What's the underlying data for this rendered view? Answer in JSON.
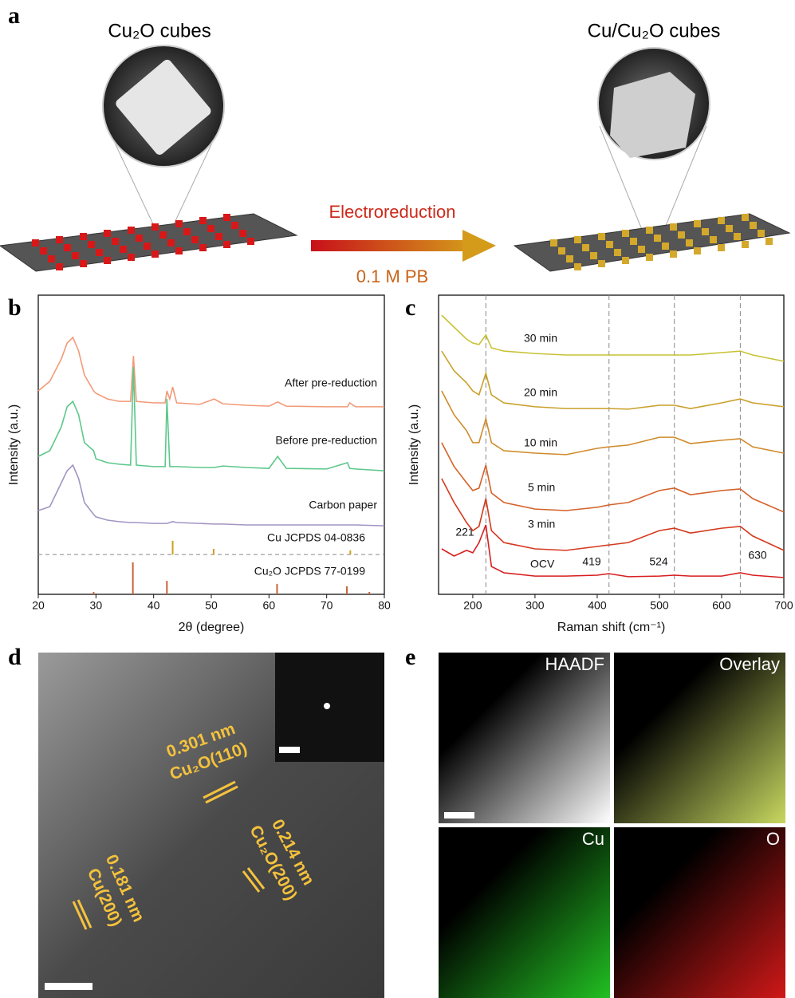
{
  "panel_labels": [
    "a",
    "b",
    "c",
    "d",
    "e"
  ],
  "schematic": {
    "left_title": "Cu₂O cubes",
    "right_title": "Cu/Cu₂O cubes",
    "arrow_top": "Electroreduction",
    "arrow_bottom": "0.1 M PB"
  },
  "chart_data": [
    {
      "type": "line",
      "x_label": "2θ (degree)",
      "y_label": "Intensity (a.u.)",
      "xlim": [
        20,
        80
      ],
      "xticks": [
        20,
        30,
        40,
        50,
        60,
        70,
        80
      ],
      "ylim": [
        0,
        100
      ],
      "x": [
        20,
        22,
        24,
        25,
        26,
        27,
        28,
        29.6,
        30,
        32,
        34,
        36,
        36.5,
        37,
        40,
        42,
        42.3,
        42.8,
        43.3,
        44,
        48,
        50.5,
        52,
        56,
        60,
        61.5,
        63,
        70,
        73.6,
        74,
        75,
        80
      ],
      "series": [
        {
          "name": "After pre-reduction",
          "color": "#f29a78",
          "values": [
            68.0,
            71.2,
            78.7,
            84.0,
            85.9,
            81.3,
            73.3,
            68.0,
            67.2,
            65.3,
            64.5,
            64.5,
            79.7,
            64.5,
            64.0,
            64.0,
            68.0,
            65.3,
            69.3,
            64.0,
            63.5,
            65.3,
            63.7,
            63.2,
            62.9,
            64.3,
            62.9,
            62.7,
            62.7,
            64.0,
            62.7,
            62.7
          ]
        },
        {
          "name": "Before pre-reduction",
          "color": "#5cc88a",
          "values": [
            46.1,
            48.0,
            56.0,
            62.7,
            64.5,
            60.0,
            50.7,
            48.0,
            45.3,
            44.0,
            43.5,
            43.2,
            76.0,
            43.2,
            42.7,
            42.7,
            65.3,
            42.7,
            42.7,
            42.7,
            42.4,
            42.4,
            42.9,
            42.4,
            42.1,
            46.1,
            42.1,
            41.9,
            44.0,
            42.1,
            41.9,
            41.3
          ]
        },
        {
          "name": "Carbon paper",
          "color": "#a295c2",
          "values": [
            28.0,
            29.3,
            37.3,
            41.3,
            43.2,
            38.7,
            30.7,
            26.7,
            25.9,
            24.8,
            24.3,
            24.0,
            24.0,
            24.0,
            23.7,
            23.7,
            23.7,
            24.0,
            24.3,
            24.0,
            23.7,
            23.5,
            23.5,
            23.2,
            23.2,
            23.2,
            23.2,
            23.2,
            23.2,
            23.2,
            23.2,
            22.9
          ]
        }
      ],
      "divider": 13.3,
      "references": [
        {
          "name": "Cu JCPDS 04-0836",
          "color": "#c9a21f",
          "x": [
            43.3,
            50.4,
            74.1
          ],
          "values": [
            17.9,
            15.2,
            14.7
          ]
        },
        {
          "name": "Cu₂O JCPDS 77-0199",
          "color": "#c8643c",
          "x": [
            29.6,
            36.4,
            42.3,
            61.4,
            73.5,
            77.4
          ],
          "values": [
            0.8,
            10.7,
            4.5,
            3.5,
            2.7,
            0.8
          ]
        }
      ]
    },
    {
      "type": "line",
      "x_label": "Raman shift (cm⁻¹)",
      "y_label": "Intensity (a.u.)",
      "xlim": [
        145,
        700
      ],
      "xticks": [
        200,
        300,
        400,
        500,
        600,
        700
      ],
      "ylim": [
        0,
        100
      ],
      "x": [
        150,
        170,
        190,
        200,
        210,
        221,
        230,
        250,
        300,
        350,
        400,
        419,
        450,
        500,
        524,
        550,
        600,
        630,
        650,
        700
      ],
      "series": [
        {
          "name": "OCV",
          "color": "#d81e1e",
          "values": [
            15.2,
            12.8,
            14.7,
            13.9,
            17.3,
            23.2,
            9.3,
            7.2,
            6.1,
            6.1,
            6.4,
            6.9,
            5.9,
            6.1,
            6.4,
            6.1,
            6.1,
            7.2,
            6.4,
            5.6
          ]
        },
        {
          "name": "3 min",
          "color": "#d43a1e",
          "values": [
            38.7,
            30.7,
            24.0,
            21.3,
            22.7,
            32.0,
            21.3,
            17.3,
            15.2,
            14.7,
            16.0,
            16.5,
            17.3,
            21.3,
            22.1,
            20.5,
            22.1,
            22.7,
            19.5,
            14.7
          ]
        },
        {
          "name": "5 min",
          "color": "#d4622a",
          "values": [
            50.7,
            42.7,
            37.3,
            34.7,
            35.5,
            43.2,
            33.9,
            30.7,
            28.5,
            28.0,
            29.1,
            29.9,
            30.7,
            34.7,
            35.5,
            33.3,
            34.7,
            35.2,
            32.0,
            27.5
          ]
        },
        {
          "name": "10 min",
          "color": "#d08a2a",
          "values": [
            68.0,
            60.0,
            54.7,
            50.7,
            50.7,
            58.7,
            50.7,
            48.0,
            47.2,
            46.7,
            48.8,
            49.3,
            49.9,
            52.5,
            52.5,
            50.4,
            51.5,
            52.0,
            49.3,
            47.2
          ]
        },
        {
          "name": "20 min",
          "color": "#c9a02a",
          "values": [
            81.3,
            74.7,
            70.7,
            68.0,
            66.7,
            73.9,
            66.7,
            64.0,
            62.7,
            62.1,
            62.1,
            62.1,
            61.9,
            63.2,
            63.2,
            62.1,
            64.0,
            65.3,
            64.0,
            62.7
          ]
        },
        {
          "name": "30 min",
          "color": "#c8c234",
          "values": [
            93.3,
            89.3,
            85.3,
            84.0,
            83.5,
            86.7,
            82.4,
            81.3,
            80.5,
            80.0,
            80.0,
            80.0,
            80.0,
            80.0,
            80.0,
            80.0,
            80.8,
            81.3,
            80.0,
            77.9
          ]
        }
      ],
      "peaks": [
        221,
        419,
        524,
        630
      ]
    }
  ],
  "hrtem": {
    "annotations": [
      {
        "spacing": "0.301 nm",
        "plane": "Cu₂O(110)"
      },
      {
        "spacing": "0.214 nm",
        "plane": "Cu₂O(200)"
      },
      {
        "spacing": "0.181 nm",
        "plane": "Cu(200)"
      }
    ]
  },
  "mapping": {
    "tiles": [
      "HAADF",
      "Overlay",
      "Cu",
      "O"
    ]
  }
}
